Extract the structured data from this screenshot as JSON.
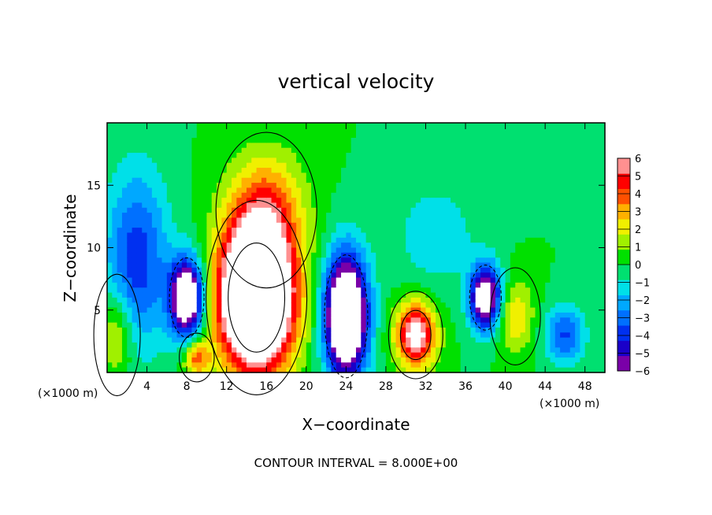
{
  "chart_data": {
    "type": "heatmap",
    "title": "vertical velocity",
    "xlabel": "X−coordinate",
    "ylabel": "Z−coordinate",
    "x_unit_left": "(×1000 m)",
    "x_unit_right": "(×1000 m)",
    "footer": "CONTOUR INTERVAL = 8.000E+00",
    "xlim": [
      0,
      50
    ],
    "ylim": [
      0,
      20
    ],
    "x_ticks": [
      4,
      8,
      12,
      16,
      20,
      24,
      28,
      32,
      36,
      40,
      44,
      48
    ],
    "x_tick_labels": [
      "4",
      "8",
      "12",
      "16",
      "20",
      "24",
      "28",
      "32",
      "36",
      "40",
      "44",
      "48"
    ],
    "y_ticks": [
      5,
      10,
      15
    ],
    "y_tick_labels": [
      "5",
      "10",
      "15"
    ],
    "colorbar": {
      "min": -6,
      "max": 6,
      "levels": [
        -6,
        -5,
        -4,
        -3,
        -2,
        -1,
        0,
        1,
        2,
        3,
        4,
        5,
        6
      ],
      "labels": [
        "−6",
        "−5",
        "−4",
        "−3",
        "−2",
        "−1",
        "0",
        "1",
        "2",
        "3",
        "4",
        "5",
        "6"
      ],
      "colors": [
        "#7a00a8",
        "#1a00c8",
        "#0030f0",
        "#0070ff",
        "#00a8ff",
        "#00e0e8",
        "#00e070",
        "#00e000",
        "#a0f000",
        "#f0f000",
        "#ffb000",
        "#ff5000",
        "#ff0000",
        "#ff9090"
      ]
    },
    "features": [
      {
        "kind": "updraft",
        "x": 15.0,
        "z": 6.0,
        "sx": 2.6,
        "sz": 4.0,
        "amp": 14
      },
      {
        "kind": "updraft-plume",
        "x": 16.0,
        "z": 13.0,
        "sx": 2.6,
        "sz": 3.2,
        "amp": 3.5
      },
      {
        "kind": "updraft",
        "x": 31.0,
        "z": 3.0,
        "sx": 1.4,
        "sz": 1.8,
        "amp": 7
      },
      {
        "kind": "updraft",
        "x": 9.0,
        "z": 1.2,
        "sx": 0.9,
        "sz": 1.0,
        "amp": 4
      },
      {
        "kind": "updraft",
        "x": 41.0,
        "z": 4.5,
        "sx": 1.3,
        "sz": 2.0,
        "amp": 2.5
      },
      {
        "kind": "updraft",
        "x": 1.0,
        "z": 3.0,
        "sx": 1.2,
        "sz": 2.5,
        "amp": 2.5
      },
      {
        "kind": "downdraft",
        "x": 8.0,
        "z": 6.0,
        "sx": 1.2,
        "sz": 2.2,
        "amp": -9
      },
      {
        "kind": "downdraft",
        "x": 24.0,
        "z": 4.5,
        "sx": 1.5,
        "sz": 3.4,
        "amp": -11
      },
      {
        "kind": "downdraft",
        "x": 38.0,
        "z": 6.0,
        "sx": 1.1,
        "sz": 1.8,
        "amp": -8
      },
      {
        "kind": "downdraft",
        "x": 3.0,
        "z": 9.0,
        "sx": 2.2,
        "sz": 5.0,
        "amp": -4
      },
      {
        "kind": "downdraft",
        "x": 46.0,
        "z": 3.0,
        "sx": 1.4,
        "sz": 1.6,
        "amp": -3.5
      },
      {
        "kind": "downdraft",
        "x": 33.0,
        "z": 11.0,
        "sx": 3.0,
        "sz": 3.0,
        "amp": -1.5
      }
    ]
  }
}
